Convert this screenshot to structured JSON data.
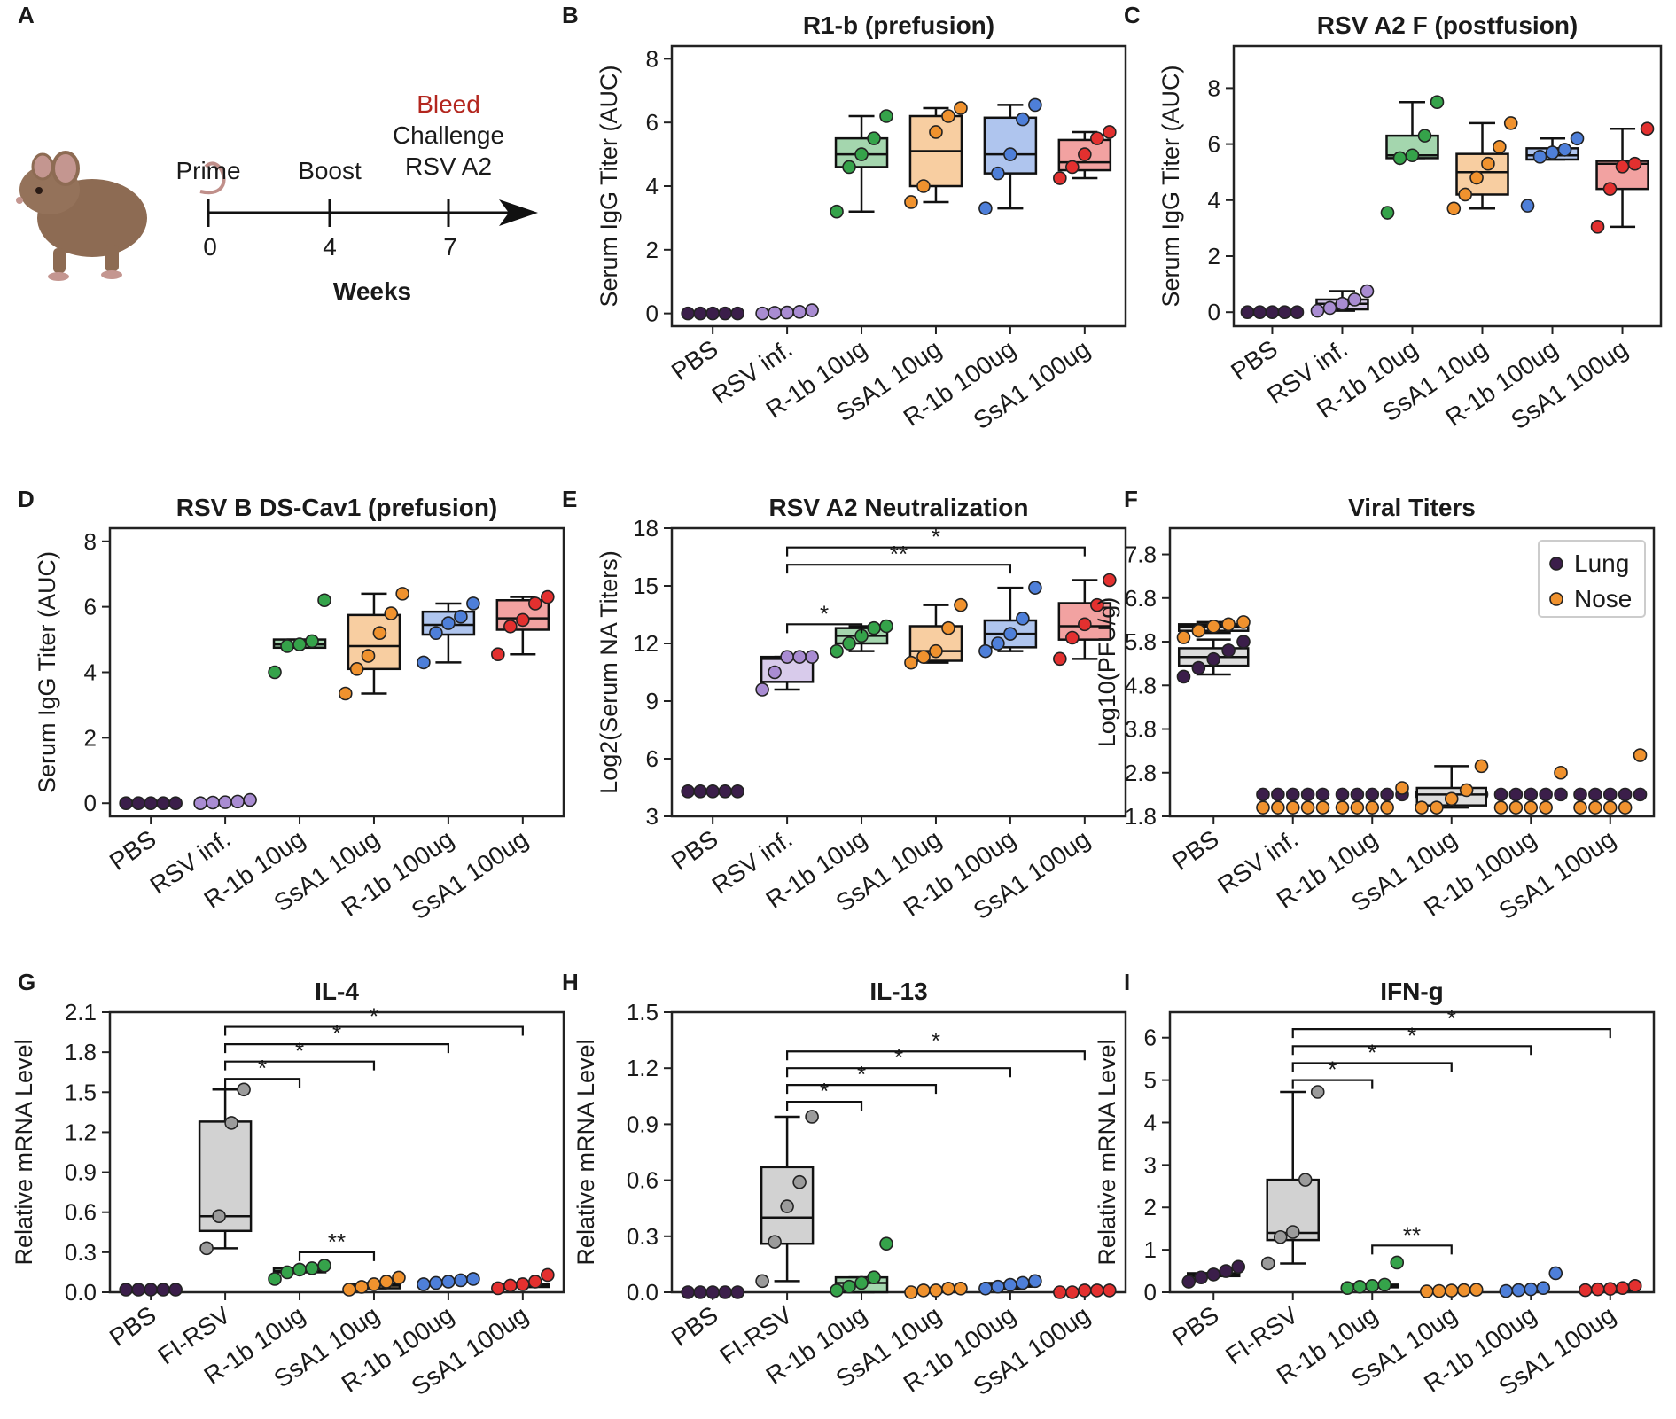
{
  "panel_letters": [
    "A",
    "B",
    "C",
    "D",
    "E",
    "F",
    "G",
    "H",
    "I"
  ],
  "colors": {
    "PBS": "#3b1e4a",
    "RSV inf.": "#a98cd2",
    "FI-RSV": "#9b9b9b",
    "R-1b 10ug": "#35a34a",
    "SsA1 10ug": "#f0922e",
    "R-1b 100ug": "#4e7fd9",
    "SsA1 100ug": "#e3302f",
    "Lung": "#3b1e4a",
    "Nose": "#f0922e",
    "Bleed": "#b3261e"
  },
  "timeline": {
    "events": [
      {
        "label": "Prime",
        "week": "0"
      },
      {
        "label": "Boost",
        "week": "4"
      },
      {
        "label": "Bleed",
        "label2": "Challenge",
        "label3": "RSV A2",
        "week": "7"
      }
    ],
    "axis_label": "Weeks",
    "mouse_icon": "mouse-icon"
  },
  "chart_data": [
    {
      "id": "B",
      "type": "box",
      "title": "R1-b (prefusion)",
      "ylabel": "Serum IgG Titer (AUC)",
      "ylim": [
        -0.4,
        8.4
      ],
      "yticks": [
        0,
        2,
        4,
        6,
        8
      ],
      "categories": [
        "PBS",
        "RSV inf.",
        "R-1b 10ug",
        "SsA1 10ug",
        "R-1b 100ug",
        "SsA1 100ug"
      ],
      "series": [
        {
          "name": "PBS",
          "points": [
            0,
            0,
            0,
            0,
            0
          ]
        },
        {
          "name": "RSV inf.",
          "points": [
            0.0,
            0.02,
            0.03,
            0.05,
            0.1
          ]
        },
        {
          "name": "R-1b 10ug",
          "points": [
            3.2,
            4.6,
            5.0,
            5.5,
            6.2
          ],
          "box": [
            3.2,
            4.6,
            5.0,
            5.5,
            6.2
          ]
        },
        {
          "name": "SsA1 10ug",
          "points": [
            3.5,
            4.0,
            5.7,
            6.2,
            6.45
          ],
          "box": [
            3.5,
            4.0,
            5.1,
            6.2,
            6.45
          ]
        },
        {
          "name": "R-1b 100ug",
          "points": [
            3.3,
            4.4,
            5.0,
            6.1,
            6.55
          ],
          "box": [
            3.3,
            4.4,
            5.0,
            6.15,
            6.55
          ]
        },
        {
          "name": "SsA1 100ug",
          "points": [
            4.25,
            4.6,
            5.0,
            5.5,
            5.7
          ],
          "box": [
            4.25,
            4.5,
            4.75,
            5.45,
            5.7
          ]
        }
      ]
    },
    {
      "id": "C",
      "type": "box",
      "title": "RSV A2 F (postfusion)",
      "ylabel": "Serum IgG Titer (AUC)",
      "ylim": [
        -0.5,
        9.5
      ],
      "yticks": [
        0,
        2,
        4,
        6,
        8
      ],
      "categories": [
        "PBS",
        "RSV inf.",
        "R-1b 10ug",
        "SsA1 10ug",
        "R-1b 100ug",
        "SsA1 100ug"
      ],
      "series": [
        {
          "name": "PBS",
          "points": [
            0,
            0,
            0,
            0,
            0
          ]
        },
        {
          "name": "RSV inf.",
          "points": [
            0.05,
            0.15,
            0.3,
            0.45,
            0.75
          ],
          "box": [
            0.05,
            0.1,
            0.3,
            0.45,
            0.75
          ]
        },
        {
          "name": "R-1b 10ug",
          "points": [
            3.55,
            5.5,
            5.6,
            6.3,
            7.5
          ],
          "box": [
            5.5,
            5.5,
            5.6,
            6.3,
            7.5
          ]
        },
        {
          "name": "SsA1 10ug",
          "points": [
            3.7,
            4.2,
            4.8,
            5.3,
            5.9,
            6.75
          ],
          "box": [
            3.7,
            4.2,
            5.0,
            5.65,
            6.75
          ]
        },
        {
          "name": "R-1b 100ug",
          "points": [
            3.8,
            5.55,
            5.7,
            5.8,
            6.2
          ],
          "box": [
            5.45,
            5.45,
            5.6,
            5.85,
            6.2
          ]
        },
        {
          "name": "SsA1 100ug",
          "points": [
            3.05,
            4.4,
            5.2,
            5.3,
            6.55
          ],
          "box": [
            3.05,
            4.4,
            5.3,
            5.4,
            6.55
          ]
        }
      ]
    },
    {
      "id": "D",
      "type": "box",
      "title": "RSV B DS-Cav1 (prefusion)",
      "ylabel": "Serum IgG Titer (AUC)",
      "ylim": [
        -0.4,
        8.4
      ],
      "yticks": [
        0,
        2,
        4,
        6,
        8
      ],
      "categories": [
        "PBS",
        "RSV inf.",
        "R-1b 10ug",
        "SsA1 10ug",
        "R-1b 100ug",
        "SsA1 100ug"
      ],
      "series": [
        {
          "name": "PBS",
          "points": [
            0,
            0,
            0,
            0,
            0
          ]
        },
        {
          "name": "RSV inf.",
          "points": [
            0.0,
            0.02,
            0.03,
            0.05,
            0.1
          ]
        },
        {
          "name": "R-1b 10ug",
          "points": [
            4.0,
            4.8,
            4.85,
            4.95,
            6.2
          ],
          "box": [
            4.75,
            4.75,
            4.85,
            5.0,
            5.0
          ]
        },
        {
          "name": "SsA1 10ug",
          "points": [
            3.35,
            4.1,
            4.5,
            5.2,
            5.8,
            6.4
          ],
          "box": [
            3.35,
            4.1,
            4.8,
            5.75,
            6.4
          ]
        },
        {
          "name": "R-1b 100ug",
          "points": [
            4.3,
            5.2,
            5.5,
            5.7,
            6.1
          ],
          "box": [
            4.3,
            5.15,
            5.45,
            5.85,
            6.1
          ]
        },
        {
          "name": "SsA1 100ug",
          "points": [
            4.55,
            5.4,
            5.6,
            6.1,
            6.3
          ],
          "box": [
            4.55,
            5.3,
            5.65,
            6.2,
            6.3
          ]
        }
      ]
    },
    {
      "id": "E",
      "type": "box",
      "title": "RSV A2 Neutralization",
      "ylabel": "Log2(Serum NA Titers)",
      "ylim": [
        3,
        18
      ],
      "yticks": [
        3,
        6,
        9,
        12,
        15,
        18
      ],
      "categories": [
        "PBS",
        "RSV inf.",
        "R-1b 10ug",
        "SsA1 10ug",
        "R-1b 100ug",
        "SsA1 100ug"
      ],
      "series": [
        {
          "name": "PBS",
          "points": [
            4.3,
            4.3,
            4.3,
            4.3,
            4.3
          ]
        },
        {
          "name": "RSV inf.",
          "points": [
            9.6,
            10.5,
            11.3,
            11.3,
            11.3
          ],
          "box": [
            9.6,
            10.0,
            11.2,
            11.3,
            11.3
          ]
        },
        {
          "name": "R-1b 10ug",
          "points": [
            11.6,
            12.0,
            12.4,
            12.8,
            12.9
          ],
          "box": [
            11.6,
            12.0,
            12.4,
            12.8,
            12.9
          ]
        },
        {
          "name": "SsA1 10ug",
          "points": [
            11.0,
            11.3,
            11.6,
            12.8,
            14.0
          ],
          "box": [
            11.0,
            11.1,
            11.6,
            12.9,
            14.0
          ]
        },
        {
          "name": "R-1b 100ug",
          "points": [
            11.6,
            12.0,
            12.5,
            13.3,
            14.9
          ],
          "box": [
            11.6,
            11.8,
            12.5,
            13.2,
            14.9
          ]
        },
        {
          "name": "SsA1 100ug",
          "points": [
            11.2,
            12.3,
            13.0,
            14.0,
            15.3
          ],
          "box": [
            11.2,
            12.2,
            12.9,
            14.1,
            15.3
          ]
        }
      ],
      "significance": [
        {
          "from": 1,
          "to": 2,
          "label": "*",
          "y": 13.0
        },
        {
          "from": 1,
          "to": 4,
          "label": "**",
          "y": 16.1
        },
        {
          "from": 1,
          "to": 5,
          "label": "*",
          "y": 17.0
        }
      ]
    },
    {
      "id": "F",
      "type": "box",
      "title": "Viral Titers",
      "ylabel": "Log10(PFU/g)",
      "ylim": [
        1.8,
        8.4
      ],
      "yticks": [
        1.8,
        2.8,
        3.8,
        4.8,
        5.8,
        6.8,
        7.8
      ],
      "categories": [
        "PBS",
        "RSV inf.",
        "R-1b 10ug",
        "SsA1 10ug",
        "R-1b 100ug",
        "SsA1 100ug"
      ],
      "legend": [
        {
          "name": "Lung"
        },
        {
          "name": "Nose"
        }
      ],
      "series": [
        {
          "name": "PBS Lung",
          "color_key": "Lung",
          "points": [
            5.0,
            5.2,
            5.4,
            5.6,
            5.8
          ],
          "box": [
            5.05,
            5.25,
            5.45,
            5.65,
            5.85
          ]
        },
        {
          "name": "PBS Nose",
          "color_key": "Nose",
          "points": [
            5.9,
            6.05,
            6.15,
            6.2,
            6.25
          ],
          "box": [
            6.0,
            6.05,
            6.15,
            6.2,
            6.25
          ]
        },
        {
          "name": "RSV inf. Lung",
          "color_key": "Lung",
          "points": [
            2.3,
            2.3,
            2.3,
            2.3,
            2.3
          ]
        },
        {
          "name": "RSV inf. Nose",
          "color_key": "Nose",
          "points": [
            2.0,
            2.0,
            2.0,
            2.0,
            2.0
          ]
        },
        {
          "name": "R-1b 10ug Lung",
          "color_key": "Lung",
          "points": [
            2.3,
            2.3,
            2.3,
            2.3,
            2.3
          ]
        },
        {
          "name": "R-1b 10ug Nose",
          "color_key": "Nose",
          "points": [
            2.0,
            2.0,
            2.0,
            2.0,
            2.45
          ]
        },
        {
          "name": "SsA1 10ug Lung",
          "color_key": "Lung",
          "points": [
            2.3,
            2.3,
            2.3,
            2.3,
            2.3
          ]
        },
        {
          "name": "SsA1 10ug Nose",
          "color_key": "Nose",
          "points": [
            2.0,
            2.0,
            2.2,
            2.4,
            2.95
          ],
          "box": [
            2.0,
            2.05,
            2.3,
            2.45,
            2.95
          ]
        },
        {
          "name": "R-1b 100ug Lung",
          "color_key": "Lung",
          "points": [
            2.3,
            2.3,
            2.3,
            2.3,
            2.3
          ]
        },
        {
          "name": "R-1b 100ug Nose",
          "color_key": "Nose",
          "points": [
            2.0,
            2.0,
            2.0,
            2.0,
            2.8
          ]
        },
        {
          "name": "SsA1 100ug Lung",
          "color_key": "Lung",
          "points": [
            2.3,
            2.3,
            2.3,
            2.3,
            2.3
          ]
        },
        {
          "name": "SsA1 100ug Nose",
          "color_key": "Nose",
          "points": [
            2.0,
            2.0,
            2.0,
            2.0,
            3.2
          ]
        }
      ]
    },
    {
      "id": "G",
      "type": "box",
      "title": "IL-4",
      "ylabel": "Relative mRNA Level",
      "ylim": [
        0,
        2.1
      ],
      "yticks": [
        0.0,
        0.3,
        0.6,
        0.9,
        1.2,
        1.5,
        1.8,
        2.1
      ],
      "tick_decimals": 1,
      "categories": [
        "PBS",
        "FI-RSV",
        "R-1b 10ug",
        "SsA1 10ug",
        "R-1b 100ug",
        "SsA1 100ug"
      ],
      "series": [
        {
          "name": "PBS",
          "points": [
            0.02,
            0.02,
            0.02,
            0.02,
            0.02
          ]
        },
        {
          "name": "FI-RSV",
          "points": [
            0.33,
            0.57,
            1.27,
            1.52
          ],
          "box": [
            0.33,
            0.46,
            0.57,
            1.28,
            1.52
          ]
        },
        {
          "name": "R-1b 10ug",
          "points": [
            0.1,
            0.15,
            0.17,
            0.18,
            0.2
          ],
          "box": [
            0.15,
            0.15,
            0.16,
            0.18,
            0.18
          ]
        },
        {
          "name": "SsA1 10ug",
          "points": [
            0.02,
            0.04,
            0.06,
            0.08,
            0.11
          ],
          "box": [
            0.03,
            0.03,
            0.05,
            0.06,
            0.07
          ]
        },
        {
          "name": "R-1b 100ug",
          "points": [
            0.06,
            0.07,
            0.08,
            0.09,
            0.1
          ]
        },
        {
          "name": "SsA1 100ug",
          "points": [
            0.03,
            0.05,
            0.06,
            0.08,
            0.13
          ],
          "box": [
            0.04,
            0.04,
            0.05,
            0.06,
            0.07
          ]
        }
      ],
      "significance": [
        {
          "from": 1,
          "to": 2,
          "label": "*",
          "y": 1.6
        },
        {
          "from": 1,
          "to": 3,
          "label": "*",
          "y": 1.73
        },
        {
          "from": 1,
          "to": 4,
          "label": "*",
          "y": 1.86
        },
        {
          "from": 1,
          "to": 5,
          "label": "*",
          "y": 1.99
        },
        {
          "from": 2,
          "to": 3,
          "label": "**",
          "y": 0.3
        }
      ]
    },
    {
      "id": "H",
      "type": "box",
      "title": "IL-13",
      "ylabel": "Relative mRNA Level",
      "ylim": [
        0,
        1.5
      ],
      "yticks": [
        0.0,
        0.3,
        0.6,
        0.9,
        1.2,
        1.5
      ],
      "tick_decimals": 1,
      "categories": [
        "PBS",
        "FI-RSV",
        "R-1b 10ug",
        "SsA1 10ug",
        "R-1b 100ug",
        "SsA1 100ug"
      ],
      "series": [
        {
          "name": "PBS",
          "points": [
            0.0,
            0.0,
            0.0,
            0.0,
            0.0
          ]
        },
        {
          "name": "FI-RSV",
          "points": [
            0.06,
            0.27,
            0.46,
            0.59,
            0.94
          ],
          "box": [
            0.06,
            0.26,
            0.4,
            0.67,
            0.94
          ]
        },
        {
          "name": "R-1b 10ug",
          "points": [
            0.01,
            0.03,
            0.05,
            0.08,
            0.26
          ],
          "box": [
            0.0,
            0.0,
            0.05,
            0.08,
            0.08
          ]
        },
        {
          "name": "SsA1 10ug",
          "points": [
            0.0,
            0.01,
            0.01,
            0.02,
            0.02
          ]
        },
        {
          "name": "R-1b 100ug",
          "points": [
            0.02,
            0.03,
            0.04,
            0.05,
            0.06
          ],
          "box": [
            0.02,
            0.03,
            0.04,
            0.05,
            0.05
          ]
        },
        {
          "name": "SsA1 100ug",
          "points": [
            0.0,
            0.0,
            0.01,
            0.01,
            0.01
          ]
        }
      ],
      "significance": [
        {
          "from": 1,
          "to": 2,
          "label": "*",
          "y": 1.02
        },
        {
          "from": 1,
          "to": 3,
          "label": "*",
          "y": 1.11
        },
        {
          "from": 1,
          "to": 4,
          "label": "*",
          "y": 1.2
        },
        {
          "from": 1,
          "to": 5,
          "label": "*",
          "y": 1.29
        }
      ]
    },
    {
      "id": "I",
      "type": "box",
      "title": "IFN-g",
      "ylabel": "Relative mRNA Level",
      "ylim": [
        0,
        6.6
      ],
      "yticks": [
        0,
        1,
        2,
        3,
        4,
        5,
        6
      ],
      "categories": [
        "PBS",
        "FI-RSV",
        "R-1b 10ug",
        "SsA1 10ug",
        "R-1b 100ug",
        "SsA1 100ug"
      ],
      "series": [
        {
          "name": "PBS",
          "points": [
            0.25,
            0.35,
            0.42,
            0.5,
            0.6
          ],
          "box": [
            0.38,
            0.38,
            0.42,
            0.45,
            0.45
          ]
        },
        {
          "name": "FI-RSV",
          "points": [
            0.68,
            1.3,
            1.42,
            2.65,
            4.72
          ],
          "box": [
            0.68,
            1.23,
            1.4,
            2.65,
            4.72
          ]
        },
        {
          "name": "R-1b 10ug",
          "points": [
            0.1,
            0.13,
            0.15,
            0.18,
            0.7
          ],
          "box": [
            0.12,
            0.12,
            0.15,
            0.18,
            0.18
          ]
        },
        {
          "name": "SsA1 10ug",
          "points": [
            0.02,
            0.03,
            0.04,
            0.05,
            0.06
          ]
        },
        {
          "name": "R-1b 100ug",
          "points": [
            0.03,
            0.05,
            0.07,
            0.1,
            0.45
          ]
        },
        {
          "name": "SsA1 100ug",
          "points": [
            0.05,
            0.07,
            0.08,
            0.1,
            0.15
          ],
          "box": [
            0.06,
            0.06,
            0.08,
            0.1,
            0.1
          ]
        }
      ],
      "significance": [
        {
          "from": 1,
          "to": 2,
          "label": "*",
          "y": 5.0
        },
        {
          "from": 1,
          "to": 3,
          "label": "*",
          "y": 5.4
        },
        {
          "from": 1,
          "to": 4,
          "label": "*",
          "y": 5.8
        },
        {
          "from": 1,
          "to": 5,
          "label": "*",
          "y": 6.2
        },
        {
          "from": 2,
          "to": 3,
          "label": "**",
          "y": 1.1
        }
      ]
    }
  ]
}
